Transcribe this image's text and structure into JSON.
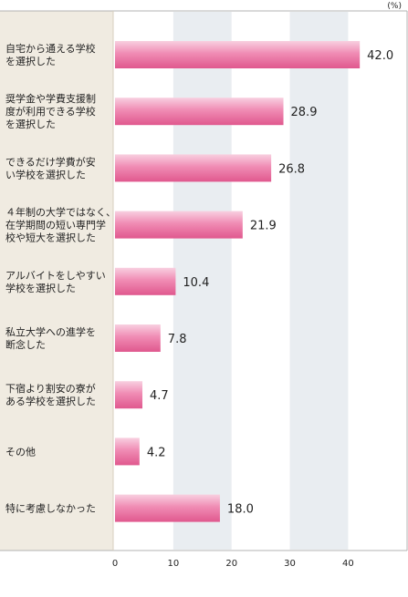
{
  "chart_data": {
    "type": "bar",
    "orientation": "horizontal",
    "unit": "(%)",
    "categories": [
      [
        "自宅から通える学校",
        "を選択した"
      ],
      [
        "奨学金や学費支援制",
        "度が利用できる学校",
        "を選択した"
      ],
      [
        "できるだけ学費が安",
        "い学校を選択した"
      ],
      [
        "４年制の大学ではなく、",
        "在学期間の短い専門学",
        "校や短大を選択した"
      ],
      [
        "アルバイトをしやすい",
        "学校を選択した"
      ],
      [
        "私立大学への進学を",
        "断念した"
      ],
      [
        "下宿より割安の寮が",
        "ある学校を選択した"
      ],
      [
        "その他"
      ],
      [
        "特に考慮しなかった"
      ]
    ],
    "values": [
      42.0,
      28.9,
      26.8,
      21.9,
      10.4,
      7.8,
      4.7,
      4.2,
      18.0
    ],
    "value_labels": [
      "42.0",
      "28.9",
      "26.8",
      "21.9",
      "10.4",
      "7.8",
      "4.7",
      "4.2",
      "18.0"
    ],
    "xlim": [
      0,
      50
    ],
    "xticks": [
      0,
      10,
      20,
      30,
      40
    ],
    "xtick_labels": [
      "0",
      "10",
      "20",
      "30",
      "40"
    ],
    "grid": "alternating vertical bands",
    "colors": {
      "bar_light": "#f8d0e0",
      "bar_mid": "#f08cb4",
      "bar_dark": "#e0588e",
      "label_panel": "#f0ebe1",
      "band": "#e9edf1",
      "text": "#222222",
      "frame": "#b3b3b3"
    }
  }
}
